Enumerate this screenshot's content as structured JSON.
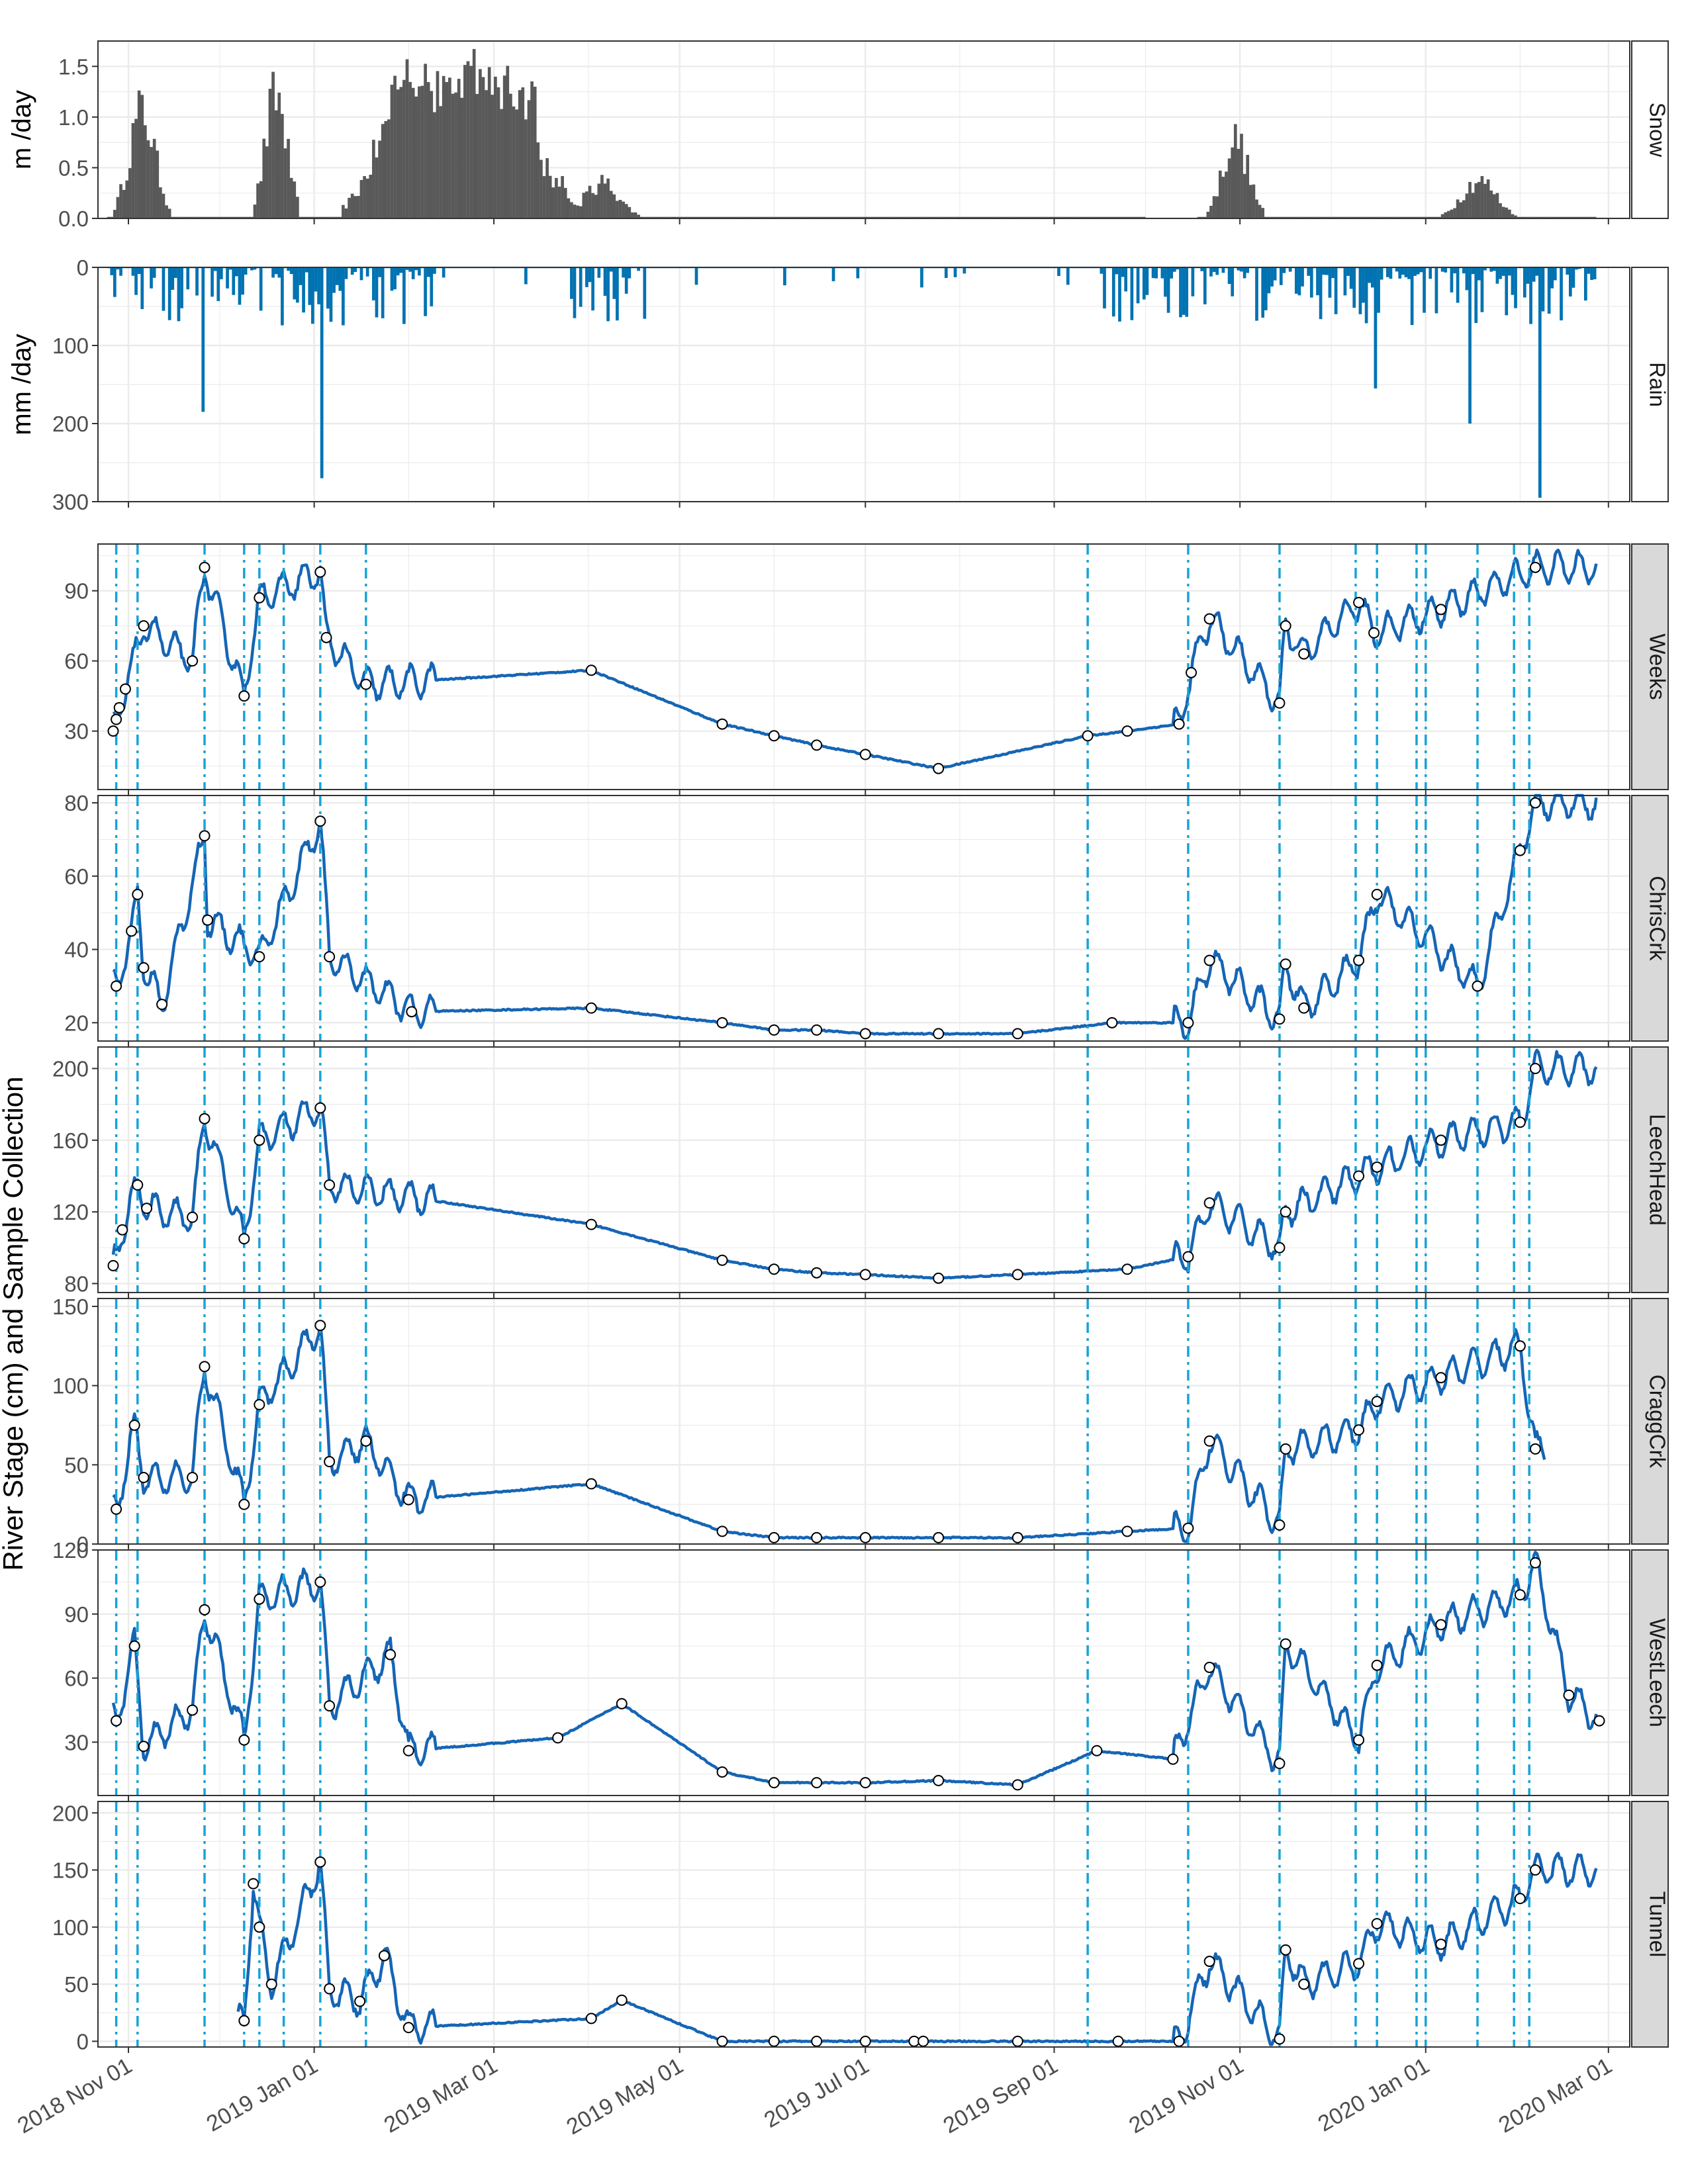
{
  "figure": {
    "y_axis_title": "River Stage (cm) and Sample Collection",
    "x_ticks": [
      "2018 Nov 01",
      "2019 Jan 01",
      "2019 Mar 01",
      "2019 May 01",
      "2019 Jul 01",
      "2019 Sep 01",
      "2019 Nov 01",
      "2020 Jan 01",
      "2020 Mar 01"
    ],
    "colors": {
      "snow": "#595959",
      "rain": "#0072B2",
      "stage": "#1565b5",
      "event_line": "#17a3d9",
      "strip_bg": "#d9d9d9",
      "grid": "#ebebeb"
    }
  },
  "chart_data": [
    {
      "type": "bar",
      "panel": "Snow",
      "ylabel": "m /day",
      "ylim": [
        0,
        1.75
      ],
      "yticks": [
        "0.0",
        "0.5",
        "1.0",
        "1.5"
      ],
      "x_range": [
        "2018-10-25",
        "2020-03-01"
      ],
      "peaks": [
        {
          "date": "2018-11-05",
          "value": 1.35
        },
        {
          "date": "2018-12-19",
          "value": 1.55
        },
        {
          "date": "2019-02-01",
          "value": 1.62
        },
        {
          "date": "2019-02-22",
          "value": 1.75
        },
        {
          "date": "2019-03-05",
          "value": 1.55
        },
        {
          "date": "2019-03-22",
          "value": 0.45
        },
        {
          "date": "2019-04-05",
          "value": 0.45
        },
        {
          "date": "2019-10-30",
          "value": 1.0
        },
        {
          "date": "2020-01-18",
          "value": 0.48
        }
      ]
    },
    {
      "type": "bar",
      "panel": "Rain",
      "ylabel": "mm /day",
      "ylim": [
        0,
        300
      ],
      "y_reversed": true,
      "yticks": [
        "0",
        "100",
        "200",
        "300"
      ],
      "x_range": [
        "2018-10-25",
        "2020-03-01"
      ],
      "peaks": [
        {
          "date": "2018-11-25",
          "value": 185
        },
        {
          "date": "2019-01-03",
          "value": 270
        },
        {
          "date": "2019-12-15",
          "value": 155
        },
        {
          "date": "2020-01-15",
          "value": 200
        },
        {
          "date": "2020-02-07",
          "value": 295
        }
      ]
    },
    {
      "type": "line",
      "panels": [
        "Weeks",
        "ChrisCrk",
        "LeechHead",
        "CraggCrk",
        "WestLeech",
        "Tunnel"
      ],
      "x_range": [
        "2018-10-25",
        "2020-03-01"
      ],
      "event_dates": [
        "2018-10-28",
        "2018-11-04",
        "2018-11-26",
        "2018-12-09",
        "2018-12-14",
        "2018-12-22",
        "2019-01-03",
        "2019-01-18",
        "2019-09-12",
        "2019-10-15",
        "2019-11-14",
        "2019-12-09",
        "2019-12-16",
        "2019-12-29",
        "2020-01-01",
        "2020-01-18",
        "2020-01-30",
        "2020-02-04"
      ],
      "series": [
        {
          "name": "Weeks",
          "ylim": [
            5,
            110
          ],
          "yticks": [
            "30",
            "60",
            "90"
          ],
          "samples": [
            [
              "2018-10-27",
              30
            ],
            [
              "2018-10-28",
              35
            ],
            [
              "2018-10-29",
              40
            ],
            [
              "2018-10-31",
              48
            ],
            [
              "2018-11-06",
              75
            ],
            [
              "2018-11-22",
              60
            ],
            [
              "2018-11-26",
              100
            ],
            [
              "2018-12-09",
              45
            ],
            [
              "2018-12-14",
              87
            ],
            [
              "2019-01-03",
              98
            ],
            [
              "2019-01-05",
              70
            ],
            [
              "2019-01-18",
              50
            ],
            [
              "2019-04-02",
              56
            ],
            [
              "2019-05-15",
              33
            ],
            [
              "2019-06-01",
              28
            ],
            [
              "2019-06-15",
              24
            ],
            [
              "2019-07-01",
              20
            ],
            [
              "2019-07-25",
              14
            ],
            [
              "2019-09-12",
              28
            ],
            [
              "2019-09-25",
              30
            ],
            [
              "2019-10-12",
              33
            ],
            [
              "2019-10-16",
              55
            ],
            [
              "2019-10-22",
              78
            ],
            [
              "2019-11-14",
              42
            ],
            [
              "2019-11-16",
              75
            ],
            [
              "2019-11-22",
              63
            ],
            [
              "2019-12-10",
              85
            ],
            [
              "2019-12-15",
              72
            ],
            [
              "2020-01-06",
              82
            ],
            [
              "2020-02-06",
              100
            ]
          ]
        },
        {
          "name": "ChrisCrk",
          "ylim": [
            15,
            82
          ],
          "yticks": [
            "20",
            "40",
            "60",
            "80"
          ],
          "samples": [
            [
              "2018-10-28",
              30
            ],
            [
              "2018-11-02",
              45
            ],
            [
              "2018-11-04",
              55
            ],
            [
              "2018-11-06",
              35
            ],
            [
              "2018-11-12",
              25
            ],
            [
              "2018-11-26",
              71
            ],
            [
              "2018-11-27",
              48
            ],
            [
              "2018-12-14",
              38
            ],
            [
              "2019-01-03",
              75
            ],
            [
              "2019-01-06",
              38
            ],
            [
              "2019-02-02",
              23
            ],
            [
              "2019-04-02",
              24
            ],
            [
              "2019-05-15",
              20
            ],
            [
              "2019-06-01",
              18
            ],
            [
              "2019-06-15",
              18
            ],
            [
              "2019-07-01",
              17
            ],
            [
              "2019-07-25",
              17
            ],
            [
              "2019-08-20",
              17
            ],
            [
              "2019-09-20",
              20
            ],
            [
              "2019-10-15",
              20
            ],
            [
              "2019-10-22",
              37
            ],
            [
              "2019-11-14",
              21
            ],
            [
              "2019-11-16",
              36
            ],
            [
              "2019-11-22",
              24
            ],
            [
              "2019-12-10",
              37
            ],
            [
              "2019-12-16",
              55
            ],
            [
              "2020-01-18",
              30
            ],
            [
              "2020-02-01",
              67
            ],
            [
              "2020-02-06",
              80
            ]
          ]
        },
        {
          "name": "LeechHead",
          "ylim": [
            75,
            212
          ],
          "yticks": [
            "80",
            "120",
            "160",
            "200"
          ],
          "samples": [
            [
              "2018-10-27",
              90
            ],
            [
              "2018-10-30",
              110
            ],
            [
              "2018-11-04",
              135
            ],
            [
              "2018-11-07",
              122
            ],
            [
              "2018-11-22",
              117
            ],
            [
              "2018-11-26",
              172
            ],
            [
              "2018-12-09",
              105
            ],
            [
              "2018-12-14",
              160
            ],
            [
              "2019-01-03",
              178
            ],
            [
              "2019-01-06",
              135
            ],
            [
              "2019-04-02",
              113
            ],
            [
              "2019-05-15",
              93
            ],
            [
              "2019-06-01",
              88
            ],
            [
              "2019-06-15",
              86
            ],
            [
              "2019-07-01",
              85
            ],
            [
              "2019-07-25",
              83
            ],
            [
              "2019-08-20",
              85
            ],
            [
              "2019-09-25",
              88
            ],
            [
              "2019-10-15",
              95
            ],
            [
              "2019-10-22",
              125
            ],
            [
              "2019-11-14",
              100
            ],
            [
              "2019-11-16",
              120
            ],
            [
              "2019-12-10",
              140
            ],
            [
              "2019-12-16",
              145
            ],
            [
              "2020-01-06",
              160
            ],
            [
              "2020-02-01",
              170
            ],
            [
              "2020-02-06",
              200
            ]
          ]
        },
        {
          "name": "CraggCrk",
          "ylim": [
            0,
            155
          ],
          "yticks": [
            "0",
            "50",
            "100",
            "150"
          ],
          "samples": [
            [
              "2018-10-28",
              22
            ],
            [
              "2018-11-03",
              75
            ],
            [
              "2018-11-06",
              42
            ],
            [
              "2018-11-22",
              42
            ],
            [
              "2018-11-26",
              112
            ],
            [
              "2018-12-09",
              25
            ],
            [
              "2018-12-14",
              88
            ],
            [
              "2019-01-03",
              138
            ],
            [
              "2019-01-06",
              52
            ],
            [
              "2019-01-18",
              65
            ],
            [
              "2019-02-01",
              28
            ],
            [
              "2019-04-02",
              38
            ],
            [
              "2019-05-15",
              8
            ],
            [
              "2019-06-01",
              4
            ],
            [
              "2019-06-15",
              4
            ],
            [
              "2019-07-01",
              4
            ],
            [
              "2019-07-25",
              4
            ],
            [
              "2019-08-20",
              4
            ],
            [
              "2019-09-25",
              8
            ],
            [
              "2019-10-15",
              10
            ],
            [
              "2019-10-22",
              65
            ],
            [
              "2019-11-14",
              12
            ],
            [
              "2019-11-16",
              60
            ],
            [
              "2019-12-10",
              72
            ],
            [
              "2019-12-16",
              90
            ],
            [
              "2020-01-06",
              105
            ],
            [
              "2020-02-01",
              125
            ],
            [
              "2020-02-06",
              60
            ]
          ]
        },
        {
          "name": "WestLeech",
          "ylim": [
            5,
            120
          ],
          "yticks": [
            "30",
            "60",
            "90",
            "120"
          ],
          "samples": [
            [
              "2018-10-28",
              40
            ],
            [
              "2018-11-03",
              75
            ],
            [
              "2018-11-06",
              28
            ],
            [
              "2018-11-22",
              45
            ],
            [
              "2018-11-26",
              92
            ],
            [
              "2018-12-09",
              31
            ],
            [
              "2018-12-14",
              97
            ],
            [
              "2019-01-03",
              105
            ],
            [
              "2019-01-06",
              47
            ],
            [
              "2019-01-26",
              71
            ],
            [
              "2019-02-01",
              26
            ],
            [
              "2019-03-22",
              32
            ],
            [
              "2019-04-12",
              48
            ],
            [
              "2019-05-15",
              16
            ],
            [
              "2019-06-01",
              11
            ],
            [
              "2019-06-15",
              11
            ],
            [
              "2019-07-01",
              11
            ],
            [
              "2019-07-25",
              12
            ],
            [
              "2019-08-20",
              10
            ],
            [
              "2019-09-15",
              26
            ],
            [
              "2019-10-10",
              22
            ],
            [
              "2019-10-22",
              65
            ],
            [
              "2019-11-14",
              20
            ],
            [
              "2019-11-16",
              76
            ],
            [
              "2019-12-10",
              31
            ],
            [
              "2019-12-16",
              66
            ],
            [
              "2020-01-06",
              85
            ],
            [
              "2020-02-01",
              99
            ],
            [
              "2020-02-06",
              114
            ],
            [
              "2020-02-17",
              52
            ],
            [
              "2020-02-27",
              40
            ]
          ]
        },
        {
          "name": "Tunnel",
          "ylim": [
            -5,
            210
          ],
          "yticks": [
            "0",
            "50",
            "100",
            "150",
            "200"
          ],
          "samples": [
            [
              "2018-12-09",
              18
            ],
            [
              "2018-12-12",
              138
            ],
            [
              "2018-12-14",
              100
            ],
            [
              "2018-12-18",
              50
            ],
            [
              "2019-01-03",
              157
            ],
            [
              "2019-01-06",
              46
            ],
            [
              "2019-01-16",
              35
            ],
            [
              "2019-01-24",
              75
            ],
            [
              "2019-02-01",
              12
            ],
            [
              "2019-04-02",
              20
            ],
            [
              "2019-04-12",
              36
            ],
            [
              "2019-05-15",
              0
            ],
            [
              "2019-06-01",
              0
            ],
            [
              "2019-06-15",
              0
            ],
            [
              "2019-07-01",
              0
            ],
            [
              "2019-07-17",
              0
            ],
            [
              "2019-07-20",
              0
            ],
            [
              "2019-08-20",
              0
            ],
            [
              "2019-09-22",
              0
            ],
            [
              "2019-10-12",
              0
            ],
            [
              "2019-10-22",
              70
            ],
            [
              "2019-11-14",
              2
            ],
            [
              "2019-11-16",
              80
            ],
            [
              "2019-11-22",
              50
            ],
            [
              "2019-12-10",
              68
            ],
            [
              "2019-12-16",
              103
            ],
            [
              "2020-01-06",
              85
            ],
            [
              "2020-02-01",
              125
            ],
            [
              "2020-02-06",
              150
            ]
          ]
        }
      ]
    }
  ]
}
